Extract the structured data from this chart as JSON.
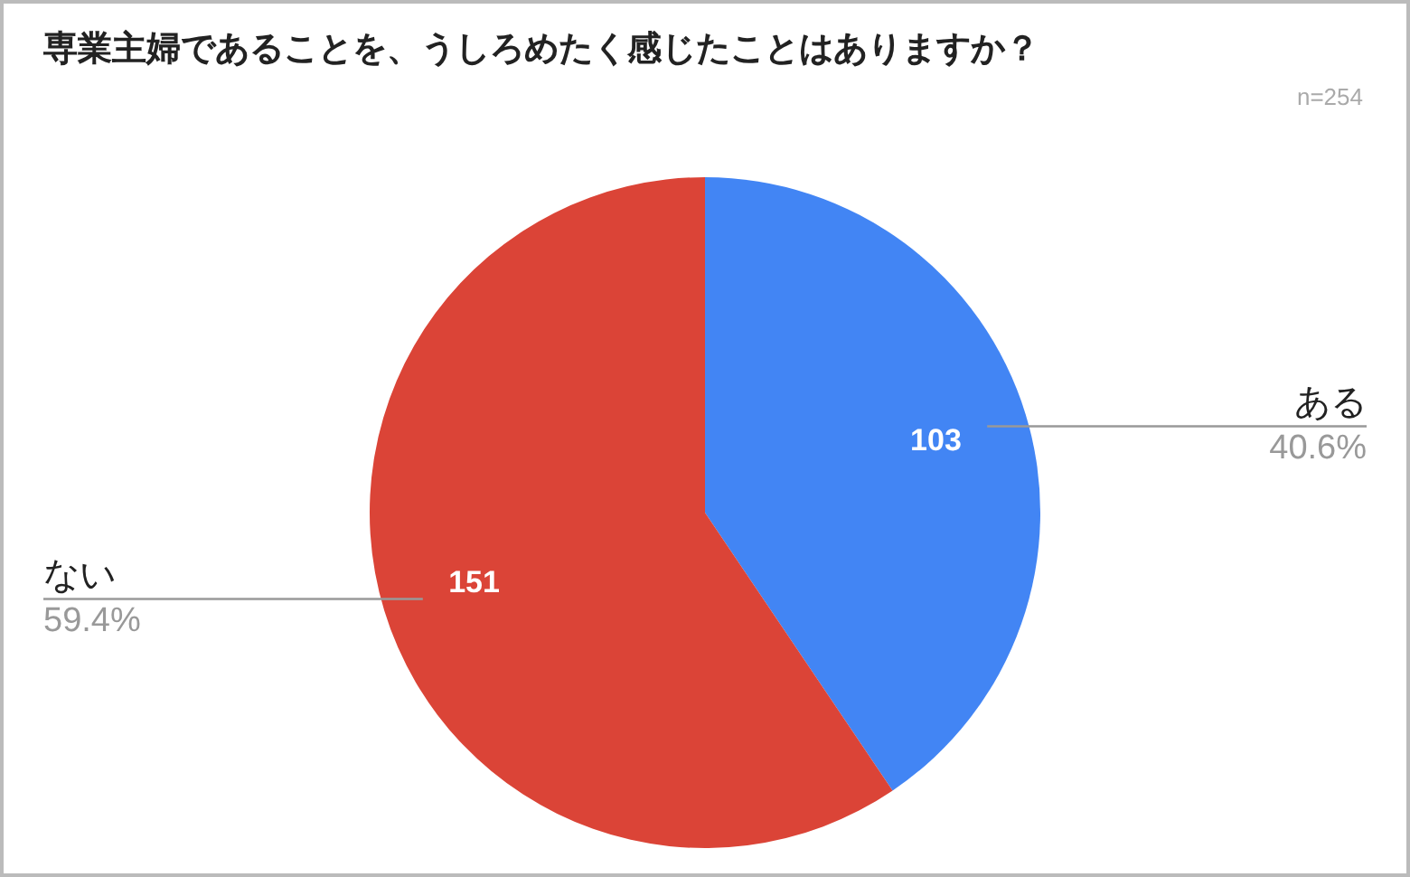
{
  "chart_data": {
    "type": "pie",
    "title": "専業主婦であることを、うしろめたく感じたことはありますか？",
    "categories": [
      "ある",
      "ない"
    ],
    "values": [
      103,
      151
    ],
    "colors": [
      "#4285f4",
      "#db4437"
    ],
    "data_labels": true,
    "legend": false,
    "annotations": [
      "n=254",
      {
        "text": "40.6%",
        "x": "ある"
      },
      {
        "text": "59.4%",
        "x": "ない"
      }
    ]
  }
}
